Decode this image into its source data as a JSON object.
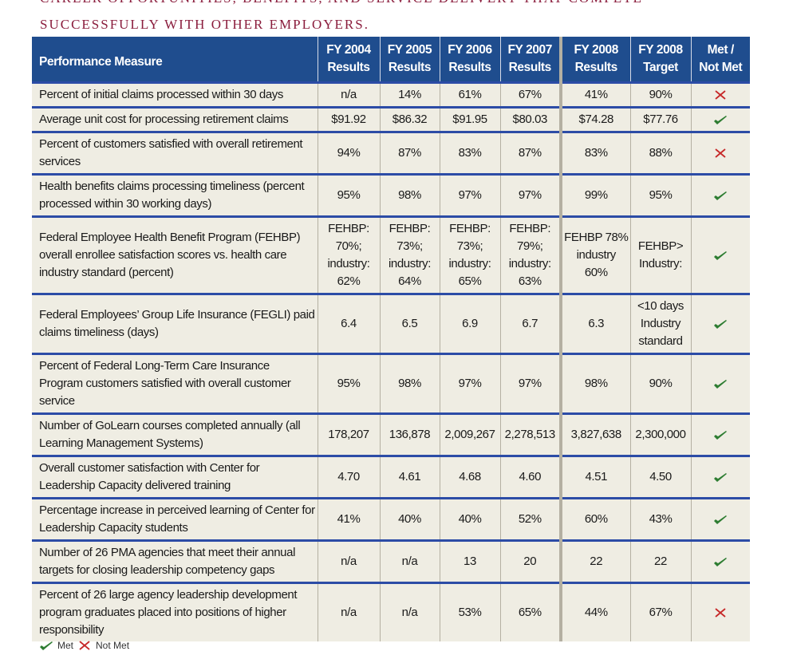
{
  "header": {
    "lines": [
      "CAREER OPPORTUNITIES, BENEFITS, AND SERVICE DELIVERY THAT COMPETE",
      "SUCCESSFULLY WITH OTHER EMPLOYERS."
    ]
  },
  "table": {
    "columns": [
      [
        "Performance Measure"
      ],
      [
        "FY 2004",
        "Results"
      ],
      [
        "FY 2005",
        "Results"
      ],
      [
        "FY 2006",
        "Results"
      ],
      [
        "FY 2007",
        "Results"
      ],
      [
        "FY 2008",
        "Results"
      ],
      [
        "FY 2008",
        "Target"
      ],
      [
        "Met /",
        "Not Met"
      ]
    ],
    "rows": [
      {
        "cells": [
          "Percent of initial claims processed within 30 days",
          "n/a",
          "14%",
          "61%",
          "67%",
          "41%",
          "90%"
        ],
        "met": false
      },
      {
        "cells": [
          "Average unit cost for processing retirement claims",
          "$91.92",
          "$86.32",
          "$91.95",
          "$80.03",
          "$74.28",
          "$77.76"
        ],
        "met": true
      },
      {
        "cells": [
          "Percent of customers satisfied with overall retirement services",
          "94%",
          "87%",
          "83%",
          "87%",
          "83%",
          "88%"
        ],
        "met": false
      },
      {
        "cells": [
          "Health benefits claims processing timeliness (percent processed within 30 working days)",
          "95%",
          "98%",
          "97%",
          "97%",
          "99%",
          "95%"
        ],
        "met": true
      },
      {
        "cells": [
          "Federal Employee Health Benefit Program (FEHBP) overall enrollee satisfaction scores vs. health care industry standard (percent)",
          "FEHBP: 70%; industry: 62%",
          "FEHBP: 73%; industry: 64%",
          "FEHBP: 73%; industry: 65%",
          "FEHBP: 79%; industry: 63%",
          "FEHBP 78% industry 60%",
          "FEHBP> Industry:"
        ],
        "met": true
      },
      {
        "cells": [
          "Federal Employees’ Group Life Insurance (FEGLI) paid claims timeliness (days)",
          "6.4",
          "6.5",
          "6.9",
          "6.7",
          "6.3",
          "<10 days Industry standard"
        ],
        "met": true
      },
      {
        "cells": [
          "Percent of Federal Long-Term Care Insurance Program customers satisfied with overall customer service",
          "95%",
          "98%",
          "97%",
          "97%",
          "98%",
          "90%"
        ],
        "met": true
      },
      {
        "cells": [
          "Number of GoLearn courses completed annually (all Learning Management Systems)",
          "178,207",
          "136,878",
          "2,009,267",
          "2,278,513",
          "3,827,638",
          "2,300,000"
        ],
        "met": true
      },
      {
        "cells": [
          "Overall customer satisfaction with Center for Leadership Capacity delivered training",
          "4.70",
          "4.61",
          "4.68",
          "4.60",
          "4.51",
          "4.50"
        ],
        "met": true
      },
      {
        "cells": [
          "Percentage increase in perceived learning of Center for Leadership Capacity students",
          "41%",
          "40%",
          "40%",
          "52%",
          "60%",
          "43%"
        ],
        "met": true
      },
      {
        "cells": [
          "Number of 26 PMA agencies that meet their annual targets for closing leadership competency gaps",
          "n/a",
          "n/a",
          "13",
          "20",
          "22",
          "22"
        ],
        "met": true
      },
      {
        "cells": [
          "Percent of 26 large agency leadership development program graduates placed into positions of higher responsibility",
          "n/a",
          "n/a",
          "53%",
          "65%",
          "44%",
          "67%"
        ],
        "met": false
      }
    ],
    "legend": {
      "met": "Met",
      "not_met": "Not Met"
    }
  }
}
